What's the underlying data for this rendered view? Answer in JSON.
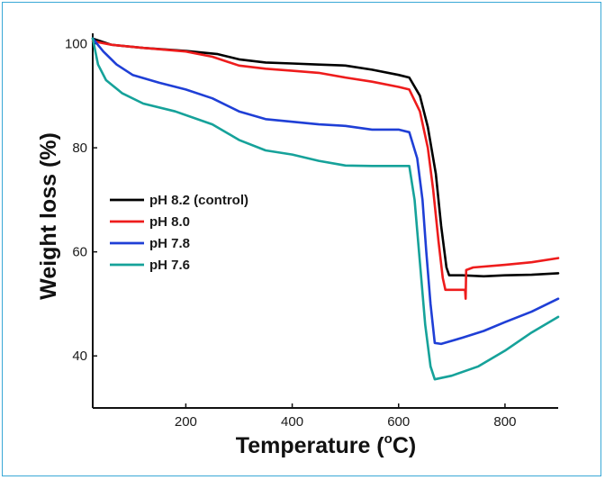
{
  "chart_data": {
    "type": "line",
    "title": "",
    "xlabel": "Temperature (°C)",
    "xlabel_main": "Temperature (",
    "xlabel_sup": "o",
    "xlabel_unit": "C)",
    "ylabel": "Weight loss (%)",
    "xlim": [
      25,
      900
    ],
    "ylim": [
      30,
      102
    ],
    "xticks": [
      200,
      400,
      600,
      800
    ],
    "yticks": [
      40,
      60,
      80,
      100
    ],
    "grid": false,
    "legend_position": "left",
    "series": [
      {
        "name": "pH 8.2 (control)",
        "color": "#000000",
        "points": [
          [
            25,
            101
          ],
          [
            60,
            99.8
          ],
          [
            120,
            99.2
          ],
          [
            200,
            98.6
          ],
          [
            260,
            98
          ],
          [
            300,
            97
          ],
          [
            350,
            96.4
          ],
          [
            400,
            96.2
          ],
          [
            450,
            96
          ],
          [
            500,
            95.8
          ],
          [
            550,
            95
          ],
          [
            600,
            94
          ],
          [
            620,
            93.5
          ],
          [
            640,
            90
          ],
          [
            655,
            84
          ],
          [
            670,
            75
          ],
          [
            680,
            65
          ],
          [
            690,
            57
          ],
          [
            695,
            55.5
          ],
          [
            720,
            55.5
          ],
          [
            760,
            55.3
          ],
          [
            800,
            55.5
          ],
          [
            850,
            55.6
          ],
          [
            900,
            55.9
          ]
        ]
      },
      {
        "name": "pH 8.0",
        "color": "#ee1c1c",
        "points": [
          [
            25,
            100.5
          ],
          [
            60,
            99.8
          ],
          [
            120,
            99.2
          ],
          [
            200,
            98.5
          ],
          [
            250,
            97.5
          ],
          [
            300,
            95.8
          ],
          [
            350,
            95.2
          ],
          [
            400,
            94.8
          ],
          [
            450,
            94.4
          ],
          [
            500,
            93.5
          ],
          [
            550,
            92.7
          ],
          [
            600,
            91.7
          ],
          [
            620,
            91.2
          ],
          [
            640,
            87
          ],
          [
            655,
            80
          ],
          [
            665,
            72
          ],
          [
            675,
            62
          ],
          [
            683,
            55
          ],
          [
            688,
            52.7
          ],
          [
            705,
            52.7
          ],
          [
            725,
            52.7
          ],
          [
            726,
            51
          ],
          [
            727,
            56.5
          ],
          [
            740,
            57
          ],
          [
            800,
            57.5
          ],
          [
            850,
            58
          ],
          [
            900,
            58.8
          ]
        ]
      },
      {
        "name": "pH 7.8",
        "color": "#1f3fd6",
        "points": [
          [
            25,
            101
          ],
          [
            45,
            98.5
          ],
          [
            70,
            96
          ],
          [
            100,
            94
          ],
          [
            150,
            92.5
          ],
          [
            200,
            91.2
          ],
          [
            250,
            89.5
          ],
          [
            300,
            87
          ],
          [
            350,
            85.5
          ],
          [
            400,
            85
          ],
          [
            450,
            84.5
          ],
          [
            500,
            84.2
          ],
          [
            550,
            83.5
          ],
          [
            600,
            83.5
          ],
          [
            620,
            83
          ],
          [
            635,
            78
          ],
          [
            645,
            70
          ],
          [
            652,
            60
          ],
          [
            660,
            50
          ],
          [
            668,
            42.5
          ],
          [
            680,
            42.3
          ],
          [
            720,
            43.5
          ],
          [
            760,
            44.8
          ],
          [
            800,
            46.5
          ],
          [
            850,
            48.5
          ],
          [
            900,
            51
          ]
        ]
      },
      {
        "name": "pH 7.6",
        "color": "#16a29a",
        "points": [
          [
            25,
            101
          ],
          [
            35,
            96
          ],
          [
            50,
            93
          ],
          [
            80,
            90.5
          ],
          [
            120,
            88.5
          ],
          [
            180,
            87
          ],
          [
            250,
            84.5
          ],
          [
            300,
            81.5
          ],
          [
            350,
            79.5
          ],
          [
            400,
            78.7
          ],
          [
            450,
            77.5
          ],
          [
            500,
            76.6
          ],
          [
            550,
            76.5
          ],
          [
            580,
            76.5
          ],
          [
            610,
            76.5
          ],
          [
            620,
            76.5
          ],
          [
            630,
            70
          ],
          [
            640,
            58
          ],
          [
            650,
            46
          ],
          [
            660,
            38
          ],
          [
            668,
            35.5
          ],
          [
            700,
            36.2
          ],
          [
            750,
            38
          ],
          [
            800,
            41
          ],
          [
            850,
            44.5
          ],
          [
            900,
            47.5
          ]
        ]
      }
    ]
  }
}
